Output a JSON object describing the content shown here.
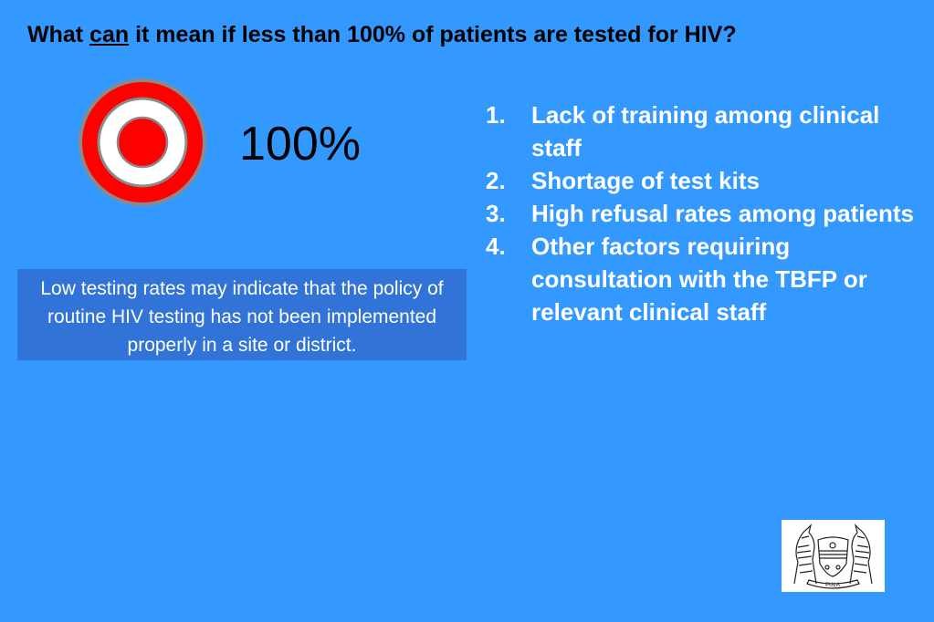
{
  "slide": {
    "title_prefix": "What ",
    "title_emphasis": "can",
    "title_suffix": " it mean if less than 100% of patients are tested for HIV?",
    "target_value": "100%",
    "callout": "Low testing rates may indicate that the policy of routine HIV testing has not been implemented properly in a site or district.",
    "reasons": [
      {
        "number": "1.",
        "text": "Lack of training among clinical staff"
      },
      {
        "number": "2.",
        "text": "Shortage of test kits"
      },
      {
        "number": "3.",
        "text": "High refusal rates among patients"
      },
      {
        "number": "4.",
        "text": "Other factors requiring consultation with the TBFP or relevant clinical staff"
      }
    ],
    "emblem_motto": "PULA",
    "colors": {
      "background": "#3399ff",
      "callout_box": "#3173d6",
      "target_red": "#ff0000",
      "target_ring_border": "#888888",
      "list_text": "#ffffff",
      "title_text": "#000000"
    },
    "icons": {
      "target": "bullseye-target-icon",
      "emblem": "coat-of-arms-emblem"
    }
  }
}
